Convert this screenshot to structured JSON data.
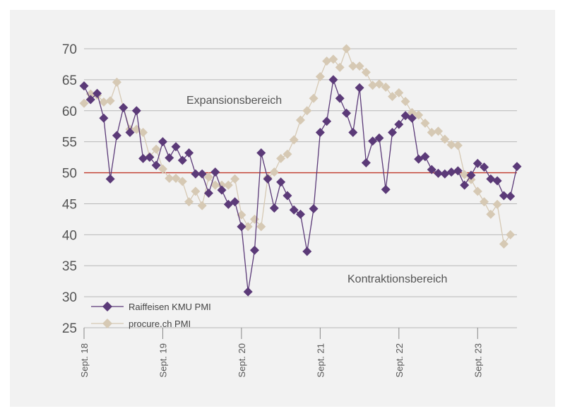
{
  "chart_data": {
    "type": "line",
    "title": "",
    "xlabel": "",
    "ylabel": "",
    "ylim": [
      25,
      70
    ],
    "yticks": [
      25,
      30,
      35,
      40,
      45,
      50,
      55,
      60,
      65,
      70
    ],
    "x_tick_labels": [
      "Sept. 18",
      "Sept. 19",
      "Sept. 20",
      "Sept. 21",
      "Sept. 22",
      "Sept. 23"
    ],
    "x_tick_index": [
      0,
      12,
      24,
      36,
      48,
      60
    ],
    "reference_line": {
      "value": 50,
      "color": "#c0392b"
    },
    "grid": "horizontal",
    "legend_position": "bottom-left",
    "annotations": {
      "upper": "Expansionsbereich",
      "lower": "Kontraktionsbereich"
    },
    "series": [
      {
        "name": "Raiffeisen KMU PMI",
        "color": "#5b3a78",
        "marker": "diamond",
        "values": [
          64.0,
          61.8,
          62.8,
          58.8,
          49.0,
          56.0,
          60.5,
          56.5,
          60.0,
          52.3,
          52.5,
          51.2,
          55.0,
          52.4,
          54.2,
          52.0,
          53.2,
          49.8,
          49.8,
          46.7,
          50.1,
          47.2,
          44.9,
          45.3,
          41.3,
          30.8,
          37.5,
          53.2,
          49.0,
          44.3,
          48.5,
          46.3,
          44.0,
          43.3,
          37.3,
          44.2,
          56.5,
          58.3,
          65.0,
          62.0,
          59.6,
          56.5,
          63.7,
          51.6,
          55.1,
          55.6,
          47.3,
          56.5,
          57.8,
          59.2,
          58.8,
          52.2,
          52.6,
          50.5,
          49.9,
          49.8,
          50.1,
          50.3,
          48.0,
          49.6,
          51.5,
          50.9,
          49.0,
          48.7,
          46.3,
          46.2,
          51.0
        ]
      },
      {
        "name": "procure.ch PMI",
        "color": "#d6c9b4",
        "marker": "diamond",
        "values": [
          61.2,
          62.7,
          62.5,
          61.4,
          61.6,
          64.6,
          60.5,
          57.0,
          57.0,
          56.5,
          52.6,
          53.8,
          50.6,
          49.1,
          49.1,
          48.6,
          45.3,
          47.0,
          44.7,
          49.3,
          48.0,
          48.0,
          48.0,
          49.0,
          43.2,
          41.3,
          42.5,
          41.3,
          49.2,
          50.1,
          52.3,
          53.0,
          55.3,
          58.5,
          60.0,
          62.0,
          65.5,
          68.0,
          68.3,
          67.0,
          70.0,
          67.2,
          67.2,
          66.2,
          64.1,
          64.3,
          63.8,
          62.3,
          62.9,
          61.5,
          59.7,
          59.3,
          58.0,
          56.5,
          56.7,
          55.4,
          54.5,
          54.4,
          49.7,
          48.9,
          47.0,
          45.3,
          43.3,
          44.9,
          38.5,
          40.0
        ]
      }
    ]
  }
}
